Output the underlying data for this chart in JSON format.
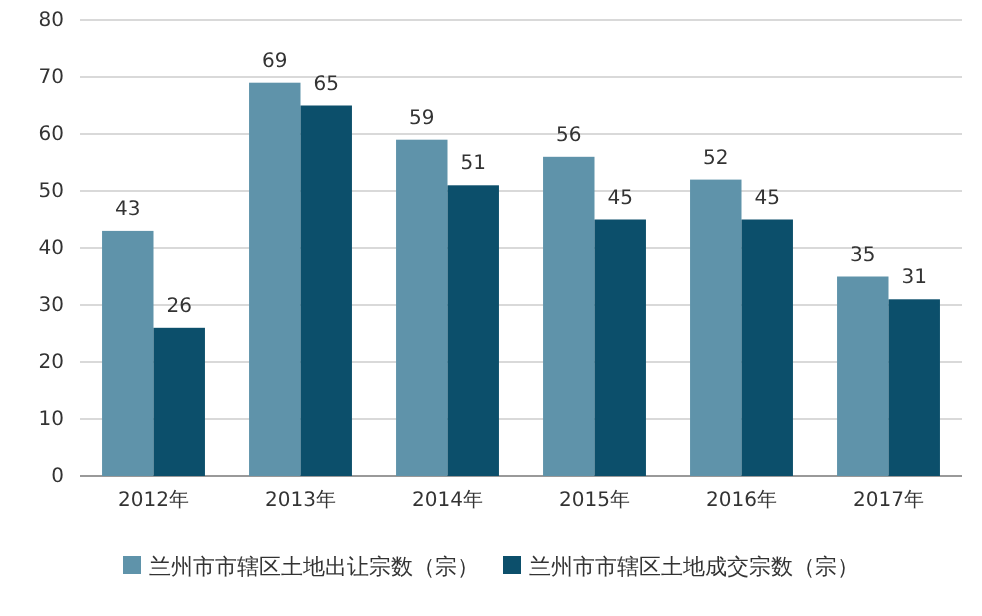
{
  "chart_data": {
    "type": "bar",
    "categories": [
      "2012年",
      "2013年",
      "2014年",
      "2015年",
      "2016年",
      "2017年"
    ],
    "series": [
      {
        "name": "兰州市市辖区土地出让宗数（宗）",
        "color": "#5f93aa",
        "values": [
          43,
          69,
          59,
          56,
          52,
          35
        ]
      },
      {
        "name": "兰州市市辖区土地成交宗数（宗）",
        "color": "#0c4f6b",
        "values": [
          26,
          65,
          51,
          45,
          45,
          31
        ]
      }
    ],
    "ylim": [
      0,
      80
    ],
    "yticks": [
      0,
      10,
      20,
      30,
      40,
      50,
      60,
      70,
      80
    ],
    "grid": "y",
    "legend": "bottom",
    "data_labels": true
  }
}
